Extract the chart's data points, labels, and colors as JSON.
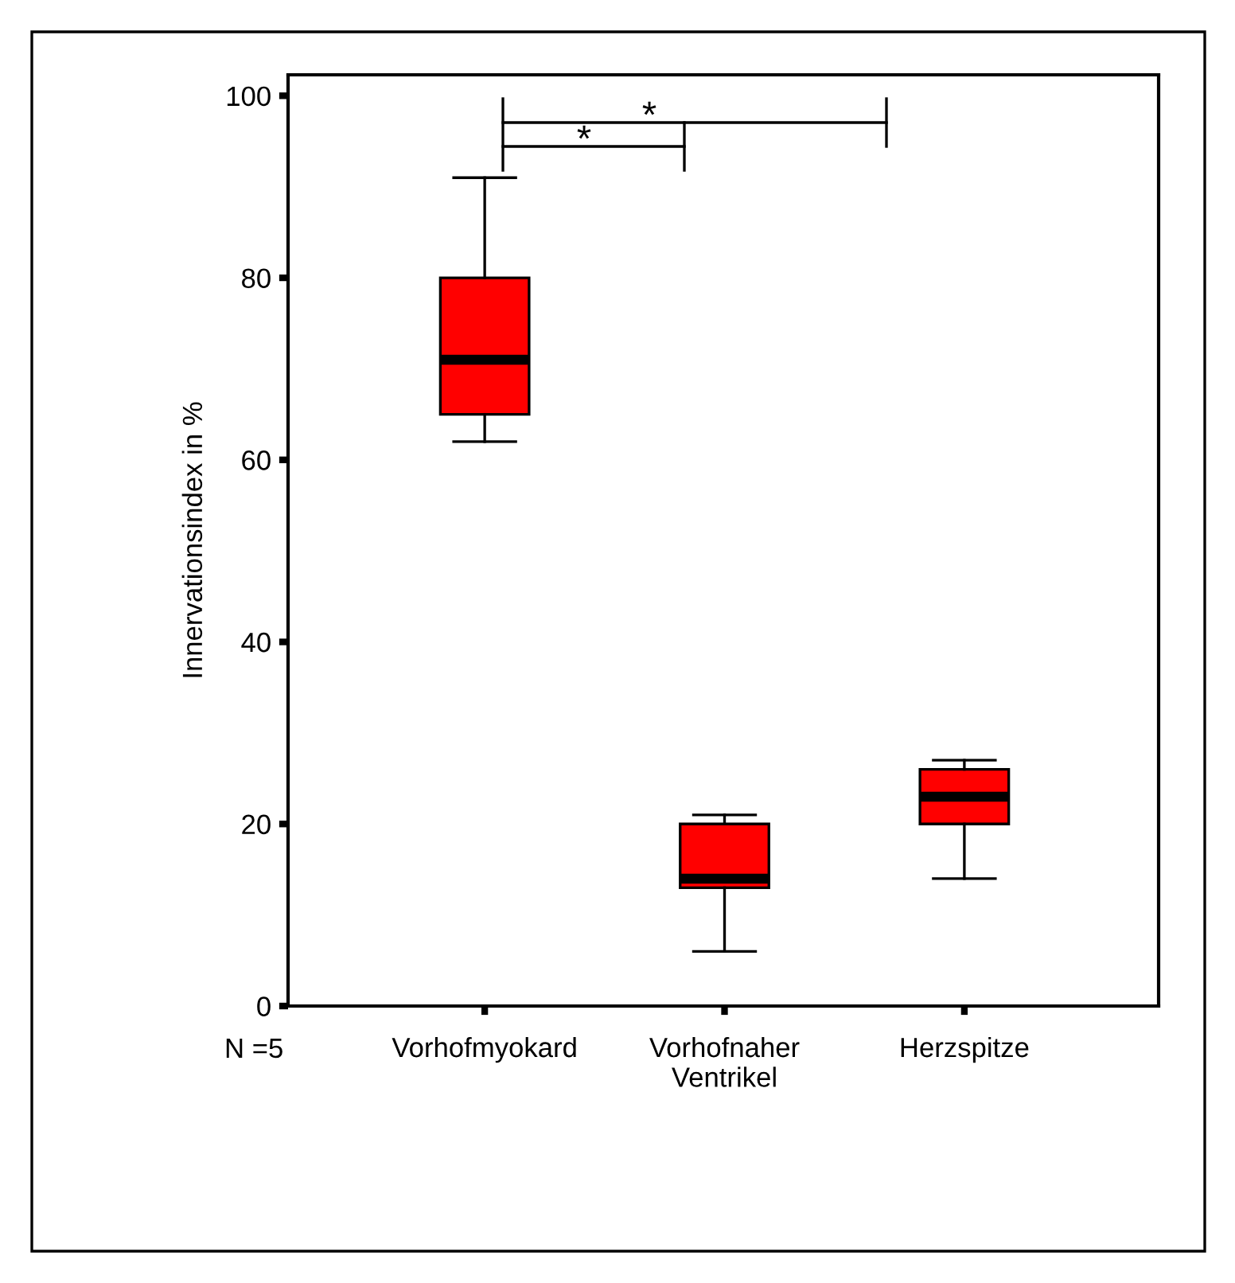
{
  "chart_data": {
    "type": "box",
    "ylabel": "Innervationsindex in %",
    "categories": [
      "Vorhofmyokard",
      "Vorhofnaher\nVentrikel",
      "Herzspitze"
    ],
    "boxes": [
      {
        "low": 62,
        "q1": 65,
        "median": 71,
        "q3": 80,
        "high": 91
      },
      {
        "low": 6,
        "q1": 13,
        "median": 14,
        "q3": 20,
        "high": 21
      },
      {
        "low": 14,
        "q1": 20,
        "median": 23,
        "q3": 26,
        "high": 27
      }
    ],
    "color": "#ff0000",
    "ylim": [
      0,
      102.3
    ],
    "yticks": [
      0,
      20,
      40,
      60,
      80,
      100
    ],
    "grid": false,
    "annotations": [
      "*",
      "*",
      "N =5"
    ]
  }
}
